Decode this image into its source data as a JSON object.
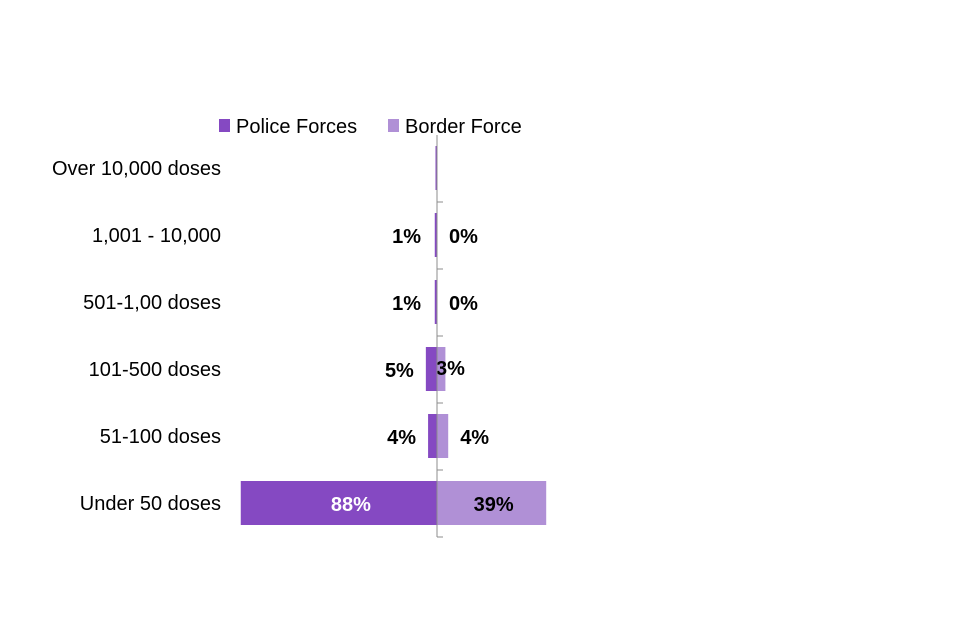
{
  "chart_data": {
    "type": "bar",
    "orientation": "horizontal-diverging",
    "categories": [
      "Over 10,000 doses",
      "1,001 - 10,000",
      "501-1,00 doses",
      "101-500 doses",
      "51-100 doses",
      "Under 50 doses"
    ],
    "series": [
      {
        "name": "Police Forces",
        "color": "#8549c2",
        "values": [
          0.3,
          1,
          1,
          5,
          4,
          88
        ],
        "labels": [
          "",
          "1%",
          "1%",
          "5%",
          "4%",
          "88%"
        ]
      },
      {
        "name": "Border Force",
        "color": "#b090d6",
        "values": [
          0,
          0,
          0,
          3,
          4,
          39
        ],
        "labels": [
          "",
          "0%",
          "0%",
          "3%",
          "4%",
          "39%"
        ]
      }
    ],
    "legend": "top",
    "grid": false
  }
}
